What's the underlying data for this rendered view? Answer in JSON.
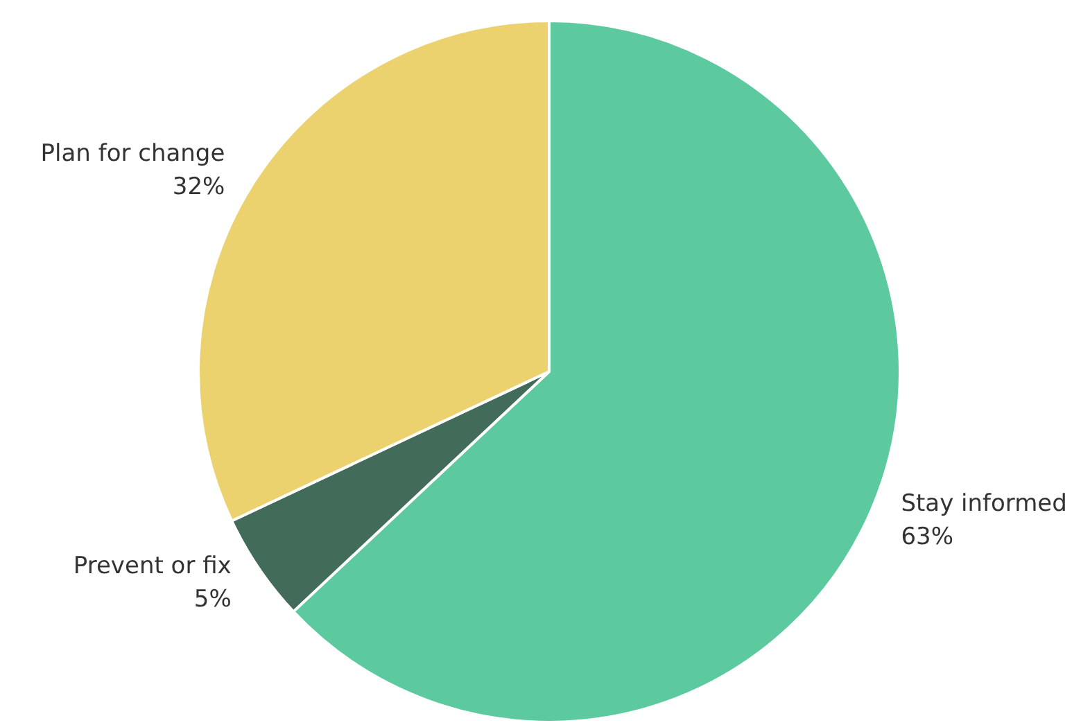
{
  "chart_data": {
    "type": "pie",
    "categories": [
      "Stay informed",
      "Prevent or fix",
      "Plan for change"
    ],
    "values": [
      63,
      5,
      32
    ],
    "value_labels": [
      "63%",
      "5%",
      "32%"
    ],
    "colors": [
      "#5cc99e",
      "#426b5a",
      "#ebd26f"
    ],
    "legend": false
  }
}
